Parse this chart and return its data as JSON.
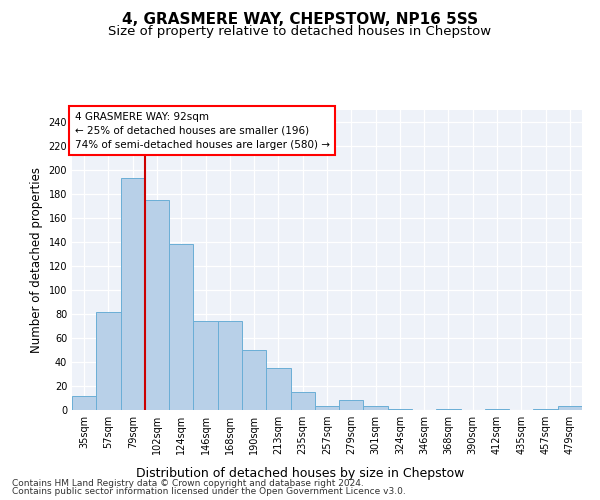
{
  "title": "4, GRASMERE WAY, CHEPSTOW, NP16 5SS",
  "subtitle": "Size of property relative to detached houses in Chepstow",
  "xlabel": "Distribution of detached houses by size in Chepstow",
  "ylabel": "Number of detached properties",
  "categories": [
    "35sqm",
    "57sqm",
    "79sqm",
    "102sqm",
    "124sqm",
    "146sqm",
    "168sqm",
    "190sqm",
    "213sqm",
    "235sqm",
    "257sqm",
    "279sqm",
    "301sqm",
    "324sqm",
    "346sqm",
    "368sqm",
    "390sqm",
    "412sqm",
    "435sqm",
    "457sqm",
    "479sqm"
  ],
  "values": [
    12,
    82,
    193,
    175,
    138,
    74,
    74,
    50,
    35,
    15,
    3,
    8,
    3,
    1,
    0,
    1,
    0,
    1,
    0,
    1,
    3
  ],
  "bar_color": "#b8d0e8",
  "bar_edge_color": "#6aaed6",
  "vline_x": 2.5,
  "vline_color": "#cc0000",
  "annotation_text": "4 GRASMERE WAY: 92sqm\n← 25% of detached houses are smaller (196)\n74% of semi-detached houses are larger (580) →",
  "ylim": [
    0,
    250
  ],
  "yticks": [
    0,
    20,
    40,
    60,
    80,
    100,
    120,
    140,
    160,
    180,
    200,
    220,
    240
  ],
  "footnote1": "Contains HM Land Registry data © Crown copyright and database right 2024.",
  "footnote2": "Contains public sector information licensed under the Open Government Licence v3.0.",
  "bg_color": "#eef2f9",
  "grid_color": "#ffffff",
  "title_fontsize": 11,
  "subtitle_fontsize": 9.5,
  "xlabel_fontsize": 9,
  "ylabel_fontsize": 8.5,
  "tick_fontsize": 7,
  "annotation_fontsize": 7.5,
  "footnote_fontsize": 6.5
}
